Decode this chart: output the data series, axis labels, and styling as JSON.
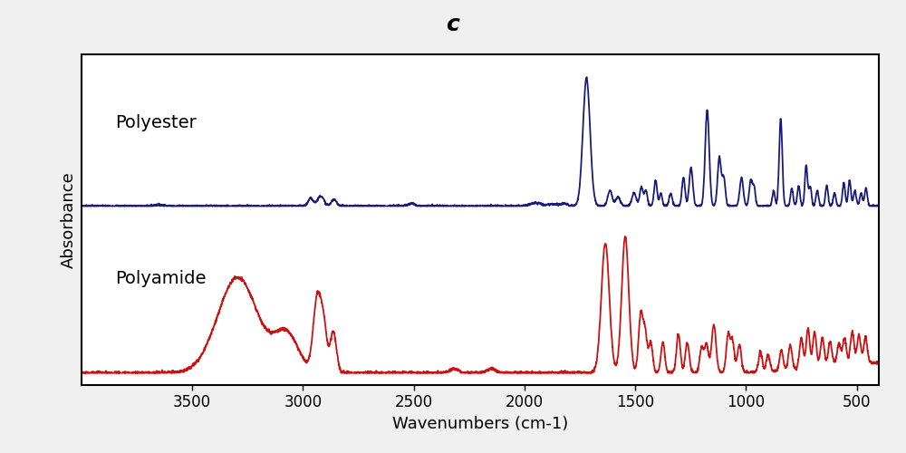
{
  "title": "c",
  "xlabel": "Wavenumbers (cm-1)",
  "ylabel": "Absorbance",
  "polyester_label": "Polyester",
  "polyamide_label": "Polyamide",
  "polyester_color": "#1a1a7a",
  "polyamide_color": "#cc1111",
  "xmin": 400,
  "xmax": 4000,
  "xticks": [
    500,
    1000,
    1500,
    2000,
    2500,
    3000,
    3500
  ],
  "background_color": "#f0f0f0",
  "plot_bg_color": "#ffffff",
  "title_fontsize": 18,
  "label_fontsize": 13,
  "tick_fontsize": 12,
  "line_width": 1.3
}
